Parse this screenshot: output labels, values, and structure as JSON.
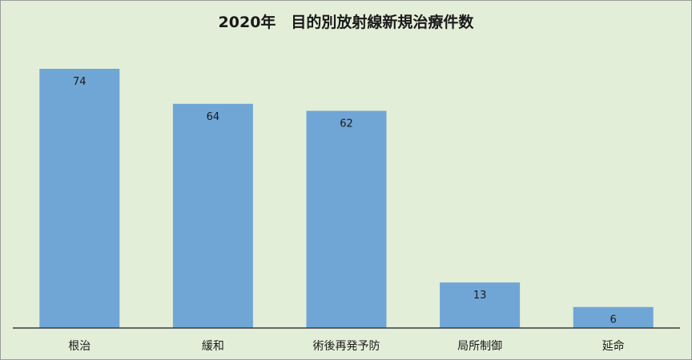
{
  "chart_data": {
    "type": "bar",
    "title": "2020年　目的別放射線新規治療件数",
    "categories": [
      "根治",
      "緩和",
      "術後再発予防",
      "局所制御",
      "延命"
    ],
    "values": [
      74,
      64,
      62,
      13,
      6
    ],
    "xlabel": "",
    "ylabel": "",
    "ylim": [
      0,
      74
    ],
    "grid": false,
    "legend": "none",
    "data_labels": "inside-end",
    "colors": {
      "bar": "#70a6d6",
      "background": "#e3eed8",
      "axis": "#3a3a3a"
    }
  }
}
